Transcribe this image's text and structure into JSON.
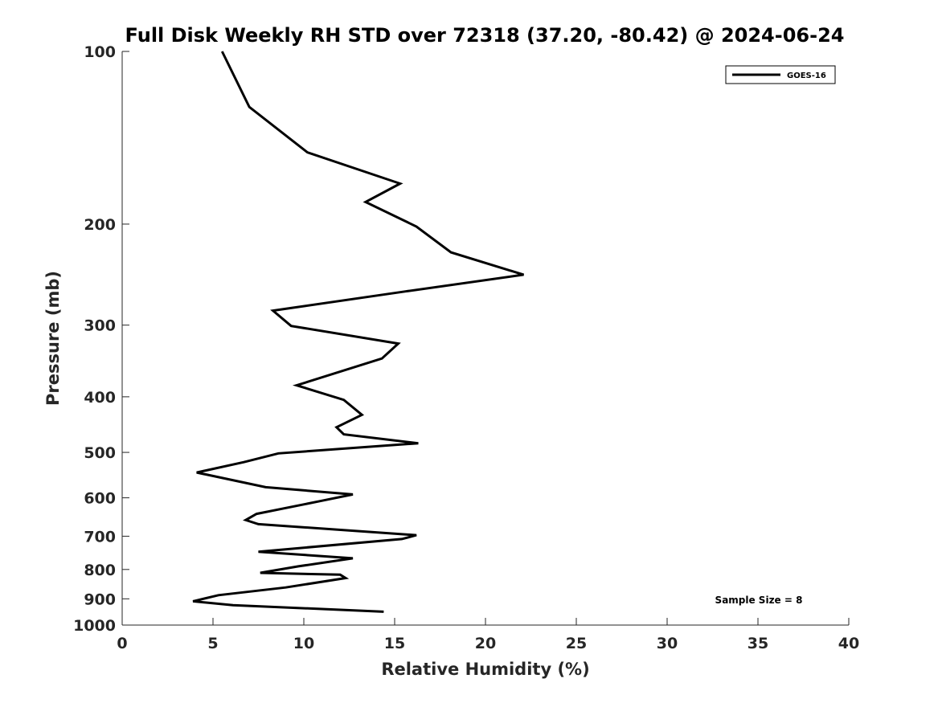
{
  "chart_data": {
    "type": "line",
    "title": "Full Disk Weekly RH STD over 72318 (37.20, -80.42) @ 2024-06-24",
    "xlabel": "Relative Humidity (%)",
    "ylabel": "Pressure (mb)",
    "xlim": [
      0,
      40
    ],
    "ylim": [
      100,
      1000
    ],
    "y_scale": "log",
    "y_reversed": true,
    "xticks": [
      0,
      5,
      10,
      15,
      20,
      25,
      30,
      35,
      40
    ],
    "yticks": [
      100,
      200,
      300,
      400,
      500,
      600,
      700,
      800,
      900,
      1000
    ],
    "grid": false,
    "legend_position": "top-right",
    "series": [
      {
        "name": "GOES-16",
        "color": "#000000",
        "points": [
          [
            5.5,
            100
          ],
          [
            7.0,
            125
          ],
          [
            10.2,
            150
          ],
          [
            15.3,
            170
          ],
          [
            13.4,
            183
          ],
          [
            16.2,
            202
          ],
          [
            18.1,
            224
          ],
          [
            22.1,
            245
          ],
          [
            15.6,
            262
          ],
          [
            8.3,
            283
          ],
          [
            9.3,
            301
          ],
          [
            15.2,
            323
          ],
          [
            14.3,
            343
          ],
          [
            9.6,
            382
          ],
          [
            12.2,
            405
          ],
          [
            13.2,
            430
          ],
          [
            11.8,
            452
          ],
          [
            12.2,
            465
          ],
          [
            16.3,
            482
          ],
          [
            8.6,
            502
          ],
          [
            6.7,
            520
          ],
          [
            4.1,
            542
          ],
          [
            7.9,
            575
          ],
          [
            12.7,
            592
          ],
          [
            10.9,
            608
          ],
          [
            7.4,
            640
          ],
          [
            6.8,
            656
          ],
          [
            7.5,
            667
          ],
          [
            16.2,
            697
          ],
          [
            15.4,
            708
          ],
          [
            7.5,
            745
          ],
          [
            12.7,
            765
          ],
          [
            9.7,
            790
          ],
          [
            7.6,
            811
          ],
          [
            12.0,
            817
          ],
          [
            12.3,
            828
          ],
          [
            9.0,
            860
          ],
          [
            5.3,
            887
          ],
          [
            3.9,
            909
          ],
          [
            6.1,
            923
          ],
          [
            14.4,
            948
          ]
        ]
      }
    ],
    "annotations": [
      "Sample Size = 8"
    ]
  }
}
